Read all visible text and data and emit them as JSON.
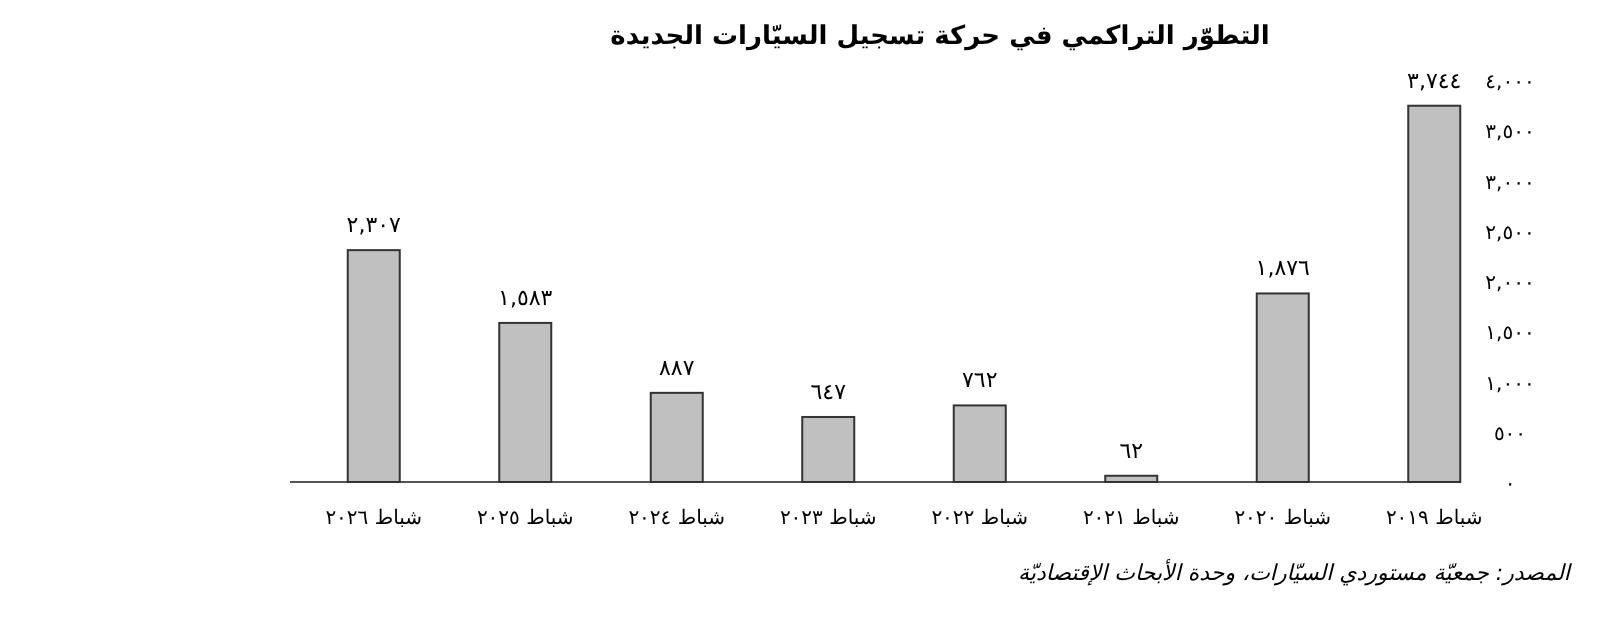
{
  "chart_data": {
    "type": "bar",
    "title": "التطوّر التراكمي في حركة تسجيل السيّارات الجديدة",
    "categories": [
      "شباط ٢٠٢٦",
      "شباط ٢٠٢٥",
      "شباط ٢٠٢٤",
      "شباط ٢٠٢٣",
      "شباط ٢٠٢٢",
      "شباط ٢٠٢١",
      "شباط ٢٠٢٠",
      "شباط ٢٠١٩"
    ],
    "values": [
      2307,
      1583,
      887,
      647,
      762,
      62,
      1876,
      3744
    ],
    "value_labels": [
      "٢,٣٠٧",
      "١,٥٨٣",
      "٨٨٧",
      "٦٤٧",
      "٧٦٢",
      "٦٢",
      "١,٨٧٦",
      "٣,٧٤٤"
    ],
    "color": "#c0c0c0",
    "ylim": [
      0,
      4000
    ],
    "yticks": [
      {
        "value": 0,
        "label": "٠"
      },
      {
        "value": 500,
        "label": "٥٠٠"
      },
      {
        "value": 1000,
        "label": "١,٠٠٠"
      },
      {
        "value": 1500,
        "label": "١,٥٠٠"
      },
      {
        "value": 2000,
        "label": "٢,٠٠٠"
      },
      {
        "value": 2500,
        "label": "٢,٥٠٠"
      },
      {
        "value": 3000,
        "label": "٣,٠٠٠"
      },
      {
        "value": 3500,
        "label": "٣,٥٠٠"
      },
      {
        "value": 4000,
        "label": "٤,٠٠٠"
      }
    ],
    "annotations": [
      "المصدر: جمعيّة مستوردي السيّارات، وحدة الأبحاث الإقتصاديّة"
    ]
  }
}
